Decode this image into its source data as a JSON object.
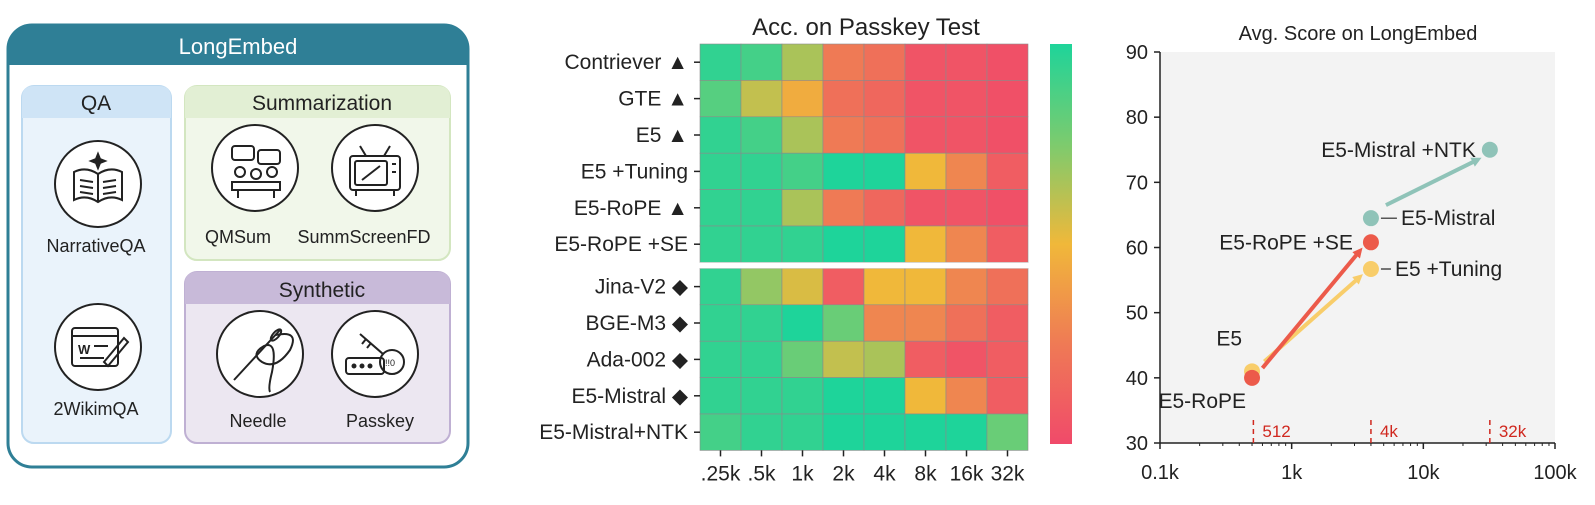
{
  "panel_left": {
    "title": "LongEmbed",
    "qa": {
      "header": "QA",
      "items": [
        "NarrativeQA",
        "2WikimQA"
      ]
    },
    "summarization": {
      "header": "Summarization",
      "items": [
        "QMSum",
        "SummScreenFD"
      ]
    },
    "synthetic": {
      "header": "Synthetic",
      "items": [
        "Needle",
        "Passkey"
      ]
    }
  },
  "colors": {
    "frame": "#2f7f96",
    "qa_bg": "#eaf3fb",
    "qa_border": "#bcd9f0",
    "qa_header": "#cfe4f6",
    "sum_bg": "#f1f7ea",
    "sum_border": "#d3e6c0",
    "sum_header": "#e2efd4",
    "syn_bg": "#ece7f1",
    "syn_border": "#bfb0d3",
    "syn_header": "#c8bad9",
    "heat_high": "#1ed49a",
    "heat_mid": "#f0b83a",
    "heat_low": "#f04a6a",
    "teal": "#8fc3b8",
    "red": "#ec5a4a",
    "yellow": "#f8cd6a"
  },
  "chart_data": [
    {
      "type": "heatmap",
      "title": "Acc. on Passkey Test",
      "x_labels": [
        ".25k",
        ".5k",
        "1k",
        "2k",
        "4k",
        "8k",
        "16k",
        "32k"
      ],
      "rows": [
        {
          "label": "Contriever ▲",
          "values": [
            95,
            90,
            65,
            25,
            20,
            5,
            5,
            3
          ]
        },
        {
          "label": "GTE ▲",
          "values": [
            85,
            60,
            45,
            20,
            15,
            5,
            5,
            3
          ]
        },
        {
          "label": "E5 ▲",
          "values": [
            95,
            90,
            65,
            25,
            20,
            5,
            5,
            3
          ]
        },
        {
          "label": "E5 +Tuning",
          "values": [
            95,
            95,
            90,
            100,
            100,
            50,
            30,
            10
          ]
        },
        {
          "label": "E5-RoPE ▲",
          "values": [
            95,
            95,
            65,
            25,
            15,
            5,
            5,
            3
          ]
        },
        {
          "label": "E5-RoPE +SE",
          "values": [
            95,
            95,
            95,
            100,
            100,
            50,
            30,
            10
          ]
        },
        {
          "label": "Jina-V2 ◆",
          "values": [
            95,
            70,
            55,
            10,
            50,
            50,
            30,
            20
          ]
        },
        {
          "label": "BGE-M3 ◆",
          "values": [
            95,
            95,
            100,
            80,
            30,
            30,
            20,
            10
          ]
        },
        {
          "label": "Ada-002 ◆",
          "values": [
            95,
            95,
            80,
            60,
            65,
            10,
            5,
            10
          ]
        },
        {
          "label": "E5-Mistral ◆",
          "values": [
            95,
            95,
            95,
            100,
            100,
            50,
            30,
            10
          ]
        },
        {
          "label": "E5-Mistral+NTK",
          "values": [
            90,
            95,
            95,
            100,
            100,
            100,
            100,
            80
          ]
        }
      ],
      "colorbar": {
        "min": 0,
        "max": 100
      }
    },
    {
      "type": "scatter",
      "title": "Avg. Score on LongEmbed",
      "x_scale": "log",
      "xlim": [
        0.1,
        100
      ],
      "ylim": [
        30,
        90
      ],
      "x_ticks": [
        0.1,
        1,
        10,
        100
      ],
      "x_tick_labels": [
        "0.1k",
        "1k",
        "10k",
        "100k"
      ],
      "y_ticks": [
        30,
        40,
        50,
        60,
        70,
        80,
        90
      ],
      "y_tick_labels": [
        "30",
        "40",
        "50",
        "60",
        "70",
        "80",
        "90"
      ],
      "vlines": [
        {
          "x": 0.512,
          "label": "512"
        },
        {
          "x": 4,
          "label": "4k"
        },
        {
          "x": 32,
          "label": "32k"
        }
      ],
      "points": [
        {
          "label": "E5",
          "x": 0.5,
          "y": 41,
          "color": "yellow"
        },
        {
          "label": "E5-RoPE",
          "x": 0.5,
          "y": 40,
          "color": "red"
        },
        {
          "label": "E5 +Tuning",
          "x": 4,
          "y": 56.7,
          "color": "yellow"
        },
        {
          "label": "E5-RoPE +SE",
          "x": 4,
          "y": 60.8,
          "color": "red"
        },
        {
          "label": "E5-Mistral",
          "x": 4,
          "y": 64.5,
          "color": "teal"
        },
        {
          "label": "E5-Mistral +NTK",
          "x": 32,
          "y": 75,
          "color": "teal"
        }
      ],
      "arrows": [
        {
          "from": [
            0.62,
            42.5
          ],
          "to": [
            3.3,
            55.5
          ],
          "color": "yellow"
        },
        {
          "from": [
            0.6,
            41.5
          ],
          "to": [
            3.3,
            59.5
          ],
          "color": "red"
        },
        {
          "from": [
            5.2,
            66.5
          ],
          "to": [
            26,
            73.5
          ],
          "color": "teal"
        }
      ]
    }
  ]
}
